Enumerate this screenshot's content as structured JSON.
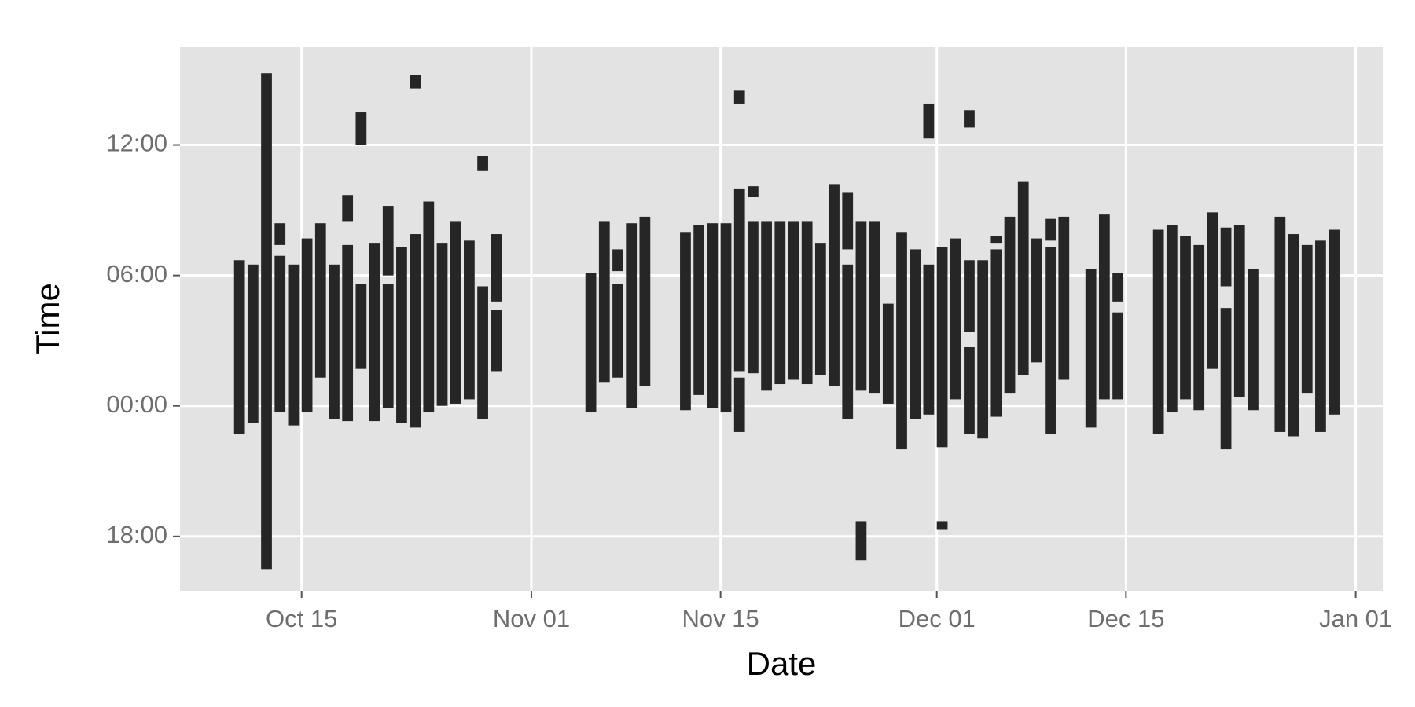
{
  "chart_data": {
    "type": "rangebar",
    "x_label": "Date",
    "y_label": "Time",
    "color": "#262626",
    "grid": true,
    "xlim": [
      "Oct 06",
      "Jan 03"
    ],
    "xticks": [
      "Oct 15",
      "Nov 01",
      "Nov 15",
      "Dec 01",
      "Dec 15",
      "Jan 01"
    ],
    "ylim": [
      -8.5,
      16.5
    ],
    "yticks": [
      {
        "value": -6,
        "label": "18:00"
      },
      {
        "value": 0,
        "label": "00:00"
      },
      {
        "value": 6,
        "label": "06:00"
      },
      {
        "value": 12,
        "label": "12:00"
      }
    ],
    "x": [
      "Oct 10",
      "Oct 11",
      "Oct 12",
      "Oct 13",
      "Oct 13",
      "Oct 14",
      "Oct 15",
      "Oct 16",
      "Oct 17",
      "Oct 18",
      "Oct 18",
      "Oct 19",
      "Oct 19",
      "Oct 20",
      "Oct 21",
      "Oct 21",
      "Oct 22",
      "Oct 23",
      "Oct 23",
      "Oct 24",
      "Oct 25",
      "Oct 26",
      "Oct 27",
      "Oct 28",
      "Oct 28",
      "Oct 29",
      "Oct 29",
      "Nov 05",
      "Nov 06",
      "Nov 07",
      "Nov 07",
      "Nov 08",
      "Nov 09",
      "Nov 12",
      "Nov 13",
      "Nov 14",
      "Nov 15",
      "Nov 16",
      "Nov 16",
      "Nov 16",
      "Nov 17",
      "Nov 17",
      "Nov 18",
      "Nov 19",
      "Nov 20",
      "Nov 21",
      "Nov 22",
      "Nov 23",
      "Nov 24",
      "Nov 24",
      "Nov 25",
      "Nov 25",
      "Nov 26",
      "Nov 27",
      "Nov 28",
      "Nov 29",
      "Nov 30",
      "Nov 30",
      "Dec 01",
      "Dec 01",
      "Dec 02",
      "Dec 03",
      "Dec 03",
      "Dec 03",
      "Dec 04",
      "Dec 05",
      "Dec 05",
      "Dec 06",
      "Dec 07",
      "Dec 08",
      "Dec 09",
      "Dec 09",
      "Dec 10",
      "Dec 12",
      "Dec 13",
      "Dec 14",
      "Dec 14",
      "Dec 17",
      "Dec 18",
      "Dec 19",
      "Dec 20",
      "Dec 21",
      "Dec 22",
      "Dec 22",
      "Dec 23",
      "Dec 24",
      "Dec 26",
      "Dec 27",
      "Dec 28",
      "Dec 29",
      "Dec 30"
    ],
    "low": [
      -1.3,
      -0.8,
      -7.5,
      7.4,
      -0.3,
      -0.9,
      -0.3,
      1.3,
      -0.6,
      8.5,
      -0.7,
      12.0,
      1.7,
      -0.7,
      6.0,
      -0.1,
      -0.8,
      14.6,
      -1.0,
      -0.3,
      0.0,
      0.1,
      0.3,
      10.8,
      -0.6,
      4.8,
      1.6,
      -0.3,
      1.1,
      6.2,
      1.3,
      -0.1,
      0.9,
      -0.2,
      0.5,
      -0.1,
      -0.3,
      13.9,
      1.6,
      -1.2,
      9.6,
      1.5,
      0.7,
      1.0,
      1.2,
      1.0,
      1.4,
      0.9,
      7.2,
      -0.6,
      0.7,
      -7.1,
      0.6,
      0.1,
      -2.0,
      -0.6,
      12.3,
      -0.4,
      -1.9,
      -5.7,
      0.3,
      12.8,
      3.4,
      -1.3,
      -1.5,
      7.5,
      -0.5,
      0.6,
      1.4,
      2.0,
      7.6,
      -1.3,
      1.2,
      -1.0,
      0.3,
      4.8,
      0.3,
      -1.3,
      -0.3,
      0.3,
      -0.2,
      1.7,
      5.5,
      -2.0,
      0.4,
      -0.2,
      -1.2,
      -1.4,
      0.6,
      -1.2,
      -0.4
    ],
    "high": [
      6.7,
      6.5,
      15.3,
      8.4,
      6.9,
      6.5,
      7.7,
      8.4,
      6.5,
      9.7,
      7.4,
      13.5,
      5.6,
      7.5,
      9.2,
      5.6,
      7.3,
      15.2,
      7.9,
      9.4,
      7.5,
      8.5,
      7.6,
      11.5,
      5.5,
      7.9,
      4.4,
      6.1,
      8.5,
      7.2,
      5.6,
      8.4,
      8.7,
      8.0,
      8.3,
      8.4,
      8.4,
      14.5,
      10.0,
      1.3,
      10.1,
      8.5,
      8.5,
      8.5,
      8.5,
      8.5,
      7.5,
      10.2,
      9.8,
      6.5,
      8.5,
      -5.3,
      8.5,
      4.7,
      8.0,
      7.2,
      13.9,
      6.5,
      7.3,
      -5.3,
      7.7,
      13.6,
      6.7,
      2.7,
      6.7,
      7.8,
      7.2,
      8.7,
      10.3,
      7.7,
      8.6,
      7.3,
      8.7,
      6.3,
      8.8,
      6.1,
      4.3,
      8.1,
      8.3,
      7.8,
      7.4,
      8.9,
      8.2,
      4.5,
      8.3,
      6.3,
      8.7,
      7.9,
      7.4,
      7.6,
      8.1
    ]
  }
}
